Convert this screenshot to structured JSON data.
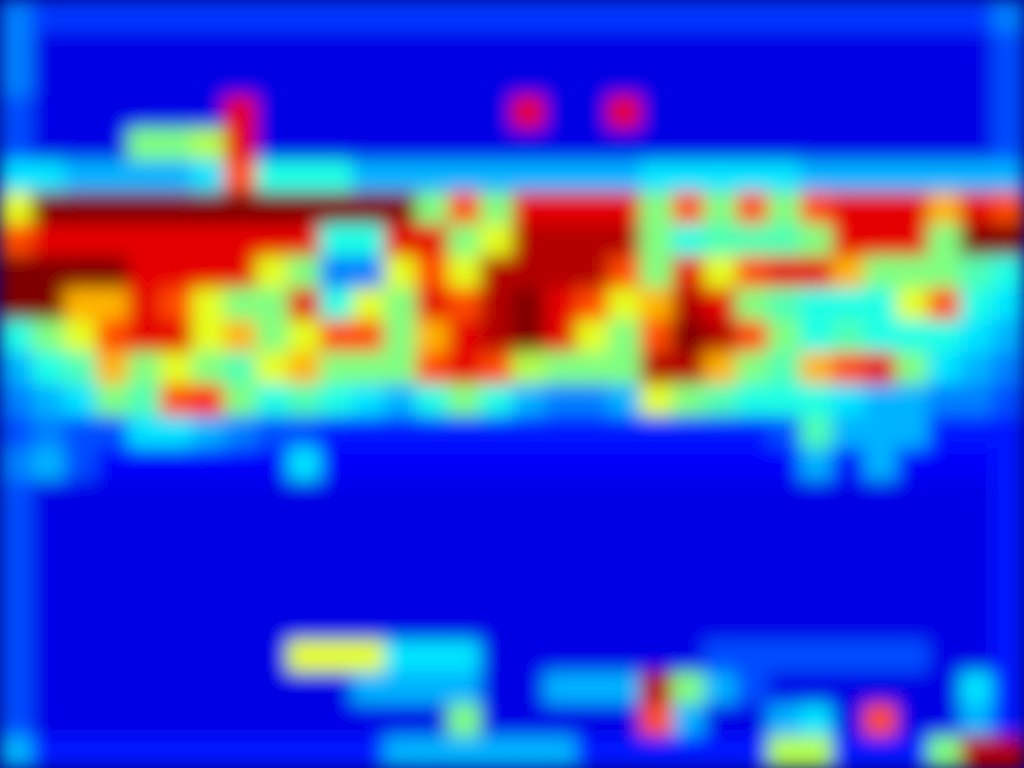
{
  "chart_data": {
    "type": "heatmap",
    "tick_labels": false,
    "zlim": [
      0,
      1
    ],
    "cells": [
      [
        0.25,
        0.18,
        0.18,
        0.18,
        0.18,
        0.18,
        0.18,
        0.18,
        0.18,
        0.18,
        0.18,
        0.18,
        0.18,
        0.18,
        0.18,
        0.18,
        0.18,
        0.18,
        0.18,
        0.18,
        0.18,
        0.18,
        0.18,
        0.18,
        0.18,
        0.18,
        0.18,
        0.18,
        0.18,
        0.18,
        0.18,
        0.25
      ],
      [
        0.25,
        0.1,
        0.1,
        0.1,
        0.1,
        0.1,
        0.1,
        0.1,
        0.1,
        0.1,
        0.1,
        0.1,
        0.1,
        0.1,
        0.1,
        0.1,
        0.1,
        0.1,
        0.1,
        0.1,
        0.1,
        0.1,
        0.1,
        0.1,
        0.1,
        0.1,
        0.1,
        0.1,
        0.1,
        0.1,
        0.1,
        0.2
      ],
      [
        0.25,
        0.1,
        0.1,
        0.1,
        0.1,
        0.1,
        0.1,
        0.1,
        0.1,
        0.1,
        0.1,
        0.1,
        0.1,
        0.1,
        0.1,
        0.1,
        0.1,
        0.1,
        0.1,
        0.1,
        0.1,
        0.1,
        0.1,
        0.1,
        0.1,
        0.1,
        0.1,
        0.1,
        0.1,
        0.1,
        0.1,
        0.2
      ],
      [
        0.2,
        0.1,
        0.1,
        0.1,
        0.1,
        0.1,
        0.1,
        0.9,
        0.1,
        0.1,
        0.1,
        0.1,
        0.1,
        0.1,
        0.1,
        0.1,
        0.9,
        0.1,
        0.1,
        0.9,
        0.1,
        0.1,
        0.1,
        0.1,
        0.1,
        0.1,
        0.1,
        0.1,
        0.1,
        0.1,
        0.1,
        0.2
      ],
      [
        0.2,
        0.1,
        0.1,
        0.1,
        0.5,
        0.5,
        0.55,
        0.9,
        0.1,
        0.1,
        0.1,
        0.1,
        0.1,
        0.1,
        0.1,
        0.1,
        0.1,
        0.1,
        0.1,
        0.1,
        0.1,
        0.1,
        0.1,
        0.1,
        0.1,
        0.1,
        0.1,
        0.1,
        0.1,
        0.1,
        0.1,
        0.2
      ],
      [
        0.35,
        0.35,
        0.3,
        0.3,
        0.3,
        0.3,
        0.35,
        0.8,
        0.4,
        0.4,
        0.4,
        0.3,
        0.3,
        0.3,
        0.3,
        0.3,
        0.3,
        0.3,
        0.3,
        0.3,
        0.35,
        0.35,
        0.35,
        0.35,
        0.35,
        0.3,
        0.3,
        0.3,
        0.3,
        0.3,
        0.3,
        0.3
      ],
      [
        0.6,
        1,
        1,
        1,
        1,
        1,
        1,
        1,
        1,
        1,
        1,
        1,
        1,
        0.5,
        0.8,
        0.5,
        0.9,
        0.9,
        0.9,
        0.9,
        0.5,
        0.8,
        0.5,
        0.8,
        0.5,
        0.8,
        0.9,
        0.9,
        0.9,
        0.7,
        0.9,
        0.8
      ],
      [
        0.8,
        0.9,
        0.9,
        0.9,
        0.9,
        0.9,
        0.9,
        0.9,
        0.9,
        0.9,
        0.4,
        0.4,
        0.9,
        0.9,
        0.5,
        0.6,
        0.95,
        0.95,
        0.95,
        0.95,
        0.5,
        0.4,
        0.45,
        0.45,
        0.45,
        0.5,
        0.9,
        0.9,
        0.9,
        0.5,
        1,
        1
      ],
      [
        1,
        1,
        1,
        1,
        0.9,
        0.9,
        0.9,
        0.9,
        0.6,
        0.5,
        0.25,
        0.25,
        0.6,
        0.8,
        0.6,
        0.95,
        0.95,
        0.95,
        0.95,
        0.8,
        0.5,
        0.9,
        0.6,
        0.8,
        0.9,
        0.9,
        0.7,
        0.5,
        0.5,
        0.5,
        0.45,
        0.4
      ],
      [
        1,
        1,
        0.7,
        0.7,
        0.9,
        0.8,
        0.6,
        0.5,
        0.5,
        0.9,
        0.4,
        0.6,
        0.5,
        0.9,
        0.8,
        0.95,
        1,
        0.9,
        0.8,
        0.6,
        0.7,
        0.95,
        0.9,
        0.5,
        0.45,
        0.4,
        0.4,
        0.4,
        0.6,
        0.8,
        0.4,
        0.35
      ],
      [
        0.4,
        0.5,
        0.6,
        0.8,
        0.9,
        0.9,
        0.6,
        0.7,
        0.5,
        0.6,
        0.8,
        0.8,
        0.5,
        0.7,
        0.9,
        0.95,
        1,
        0.9,
        0.6,
        0.5,
        0.8,
        1,
        0.95,
        0.8,
        0.5,
        0.4,
        0.45,
        0.4,
        0.4,
        0.4,
        0.35,
        0.3
      ],
      [
        0.3,
        0.4,
        0.45,
        0.7,
        0.5,
        0.6,
        0.5,
        0.45,
        0.6,
        0.7,
        0.5,
        0.5,
        0.5,
        0.8,
        0.9,
        0.8,
        0.55,
        0.5,
        0.5,
        0.5,
        0.95,
        0.95,
        0.7,
        0.5,
        0.45,
        0.7,
        0.8,
        0.9,
        0.5,
        0.35,
        0.3,
        0.25
      ],
      [
        0.25,
        0.3,
        0.35,
        0.5,
        0.45,
        0.8,
        0.85,
        0.5,
        0.4,
        0.45,
        0.4,
        0.35,
        0.3,
        0.4,
        0.5,
        0.4,
        0.3,
        0.25,
        0.25,
        0.3,
        0.6,
        0.5,
        0.45,
        0.4,
        0.4,
        0.4,
        0.35,
        0.3,
        0.3,
        0.25,
        0.25,
        0.2
      ],
      [
        0.2,
        0.25,
        0.2,
        0.2,
        0.35,
        0.35,
        0.3,
        0.25,
        0.2,
        0.2,
        0.15,
        0.15,
        0.15,
        0.15,
        0.15,
        0.15,
        0.15,
        0.15,
        0.15,
        0.15,
        0.15,
        0.15,
        0.15,
        0.15,
        0.2,
        0.45,
        0.3,
        0.3,
        0.3,
        0.15,
        0.15,
        0.15
      ],
      [
        0.25,
        0.3,
        0.2,
        0.12,
        0.12,
        0.12,
        0.12,
        0.12,
        0.12,
        0.35,
        0.12,
        0.12,
        0.12,
        0.12,
        0.12,
        0.12,
        0.12,
        0.12,
        0.12,
        0.12,
        0.12,
        0.12,
        0.12,
        0.12,
        0.12,
        0.3,
        0.12,
        0.3,
        0.12,
        0.12,
        0.12,
        0.15
      ],
      [
        0.2,
        0.1,
        0.1,
        0.1,
        0.1,
        0.1,
        0.1,
        0.1,
        0.1,
        0.1,
        0.1,
        0.1,
        0.1,
        0.1,
        0.1,
        0.1,
        0.1,
        0.1,
        0.1,
        0.1,
        0.1,
        0.1,
        0.1,
        0.1,
        0.1,
        0.1,
        0.1,
        0.1,
        0.1,
        0.1,
        0.1,
        0.15
      ],
      [
        0.2,
        0.1,
        0.1,
        0.1,
        0.1,
        0.1,
        0.1,
        0.1,
        0.1,
        0.1,
        0.1,
        0.1,
        0.1,
        0.1,
        0.1,
        0.1,
        0.1,
        0.1,
        0.1,
        0.1,
        0.1,
        0.1,
        0.1,
        0.1,
        0.1,
        0.1,
        0.1,
        0.1,
        0.1,
        0.1,
        0.1,
        0.15
      ],
      [
        0.2,
        0.1,
        0.1,
        0.1,
        0.1,
        0.1,
        0.1,
        0.1,
        0.1,
        0.1,
        0.1,
        0.1,
        0.1,
        0.1,
        0.1,
        0.1,
        0.1,
        0.1,
        0.1,
        0.1,
        0.1,
        0.1,
        0.1,
        0.1,
        0.1,
        0.1,
        0.1,
        0.1,
        0.1,
        0.1,
        0.1,
        0.15
      ],
      [
        0.2,
        0.1,
        0.1,
        0.1,
        0.1,
        0.1,
        0.1,
        0.1,
        0.1,
        0.1,
        0.1,
        0.1,
        0.1,
        0.1,
        0.1,
        0.1,
        0.1,
        0.1,
        0.1,
        0.1,
        0.1,
        0.1,
        0.1,
        0.1,
        0.1,
        0.1,
        0.1,
        0.1,
        0.1,
        0.1,
        0.1,
        0.15
      ],
      [
        0.2,
        0.1,
        0.1,
        0.1,
        0.1,
        0.1,
        0.1,
        0.1,
        0.1,
        0.1,
        0.1,
        0.1,
        0.1,
        0.1,
        0.1,
        0.1,
        0.1,
        0.1,
        0.1,
        0.1,
        0.1,
        0.1,
        0.1,
        0.1,
        0.1,
        0.1,
        0.1,
        0.1,
        0.1,
        0.1,
        0.1,
        0.15
      ],
      [
        0.2,
        0.1,
        0.1,
        0.1,
        0.1,
        0.1,
        0.1,
        0.1,
        0.1,
        0.6,
        0.6,
        0.6,
        0.35,
        0.35,
        0.35,
        0.1,
        0.1,
        0.1,
        0.1,
        0.1,
        0.1,
        0.1,
        0.2,
        0.2,
        0.2,
        0.2,
        0.2,
        0.2,
        0.2,
        0.1,
        0.1,
        0.15
      ],
      [
        0.2,
        0.1,
        0.1,
        0.1,
        0.1,
        0.1,
        0.1,
        0.1,
        0.1,
        0.1,
        0.1,
        0.3,
        0.3,
        0.3,
        0.3,
        0.1,
        0.1,
        0.3,
        0.3,
        0.3,
        0.95,
        0.5,
        0.3,
        0.2,
        0.1,
        0.1,
        0.1,
        0.1,
        0.1,
        0.1,
        0.35,
        0.15
      ],
      [
        0.2,
        0.1,
        0.1,
        0.1,
        0.1,
        0.1,
        0.1,
        0.1,
        0.1,
        0.1,
        0.1,
        0.1,
        0.1,
        0.1,
        0.5,
        0.1,
        0.1,
        0.1,
        0.1,
        0.1,
        0.8,
        0.3,
        0.1,
        0.1,
        0.3,
        0.35,
        0.1,
        0.8,
        0.1,
        0.1,
        0.3,
        0.15
      ],
      [
        0.3,
        0.15,
        0.15,
        0.15,
        0.15,
        0.15,
        0.15,
        0.15,
        0.15,
        0.15,
        0.15,
        0.15,
        0.3,
        0.3,
        0.3,
        0.3,
        0.3,
        0.3,
        0.15,
        0.15,
        0.15,
        0.15,
        0.15,
        0.15,
        0.55,
        0.55,
        0.15,
        0.15,
        0.15,
        0.5,
        0.95,
        0.95
      ]
    ]
  }
}
